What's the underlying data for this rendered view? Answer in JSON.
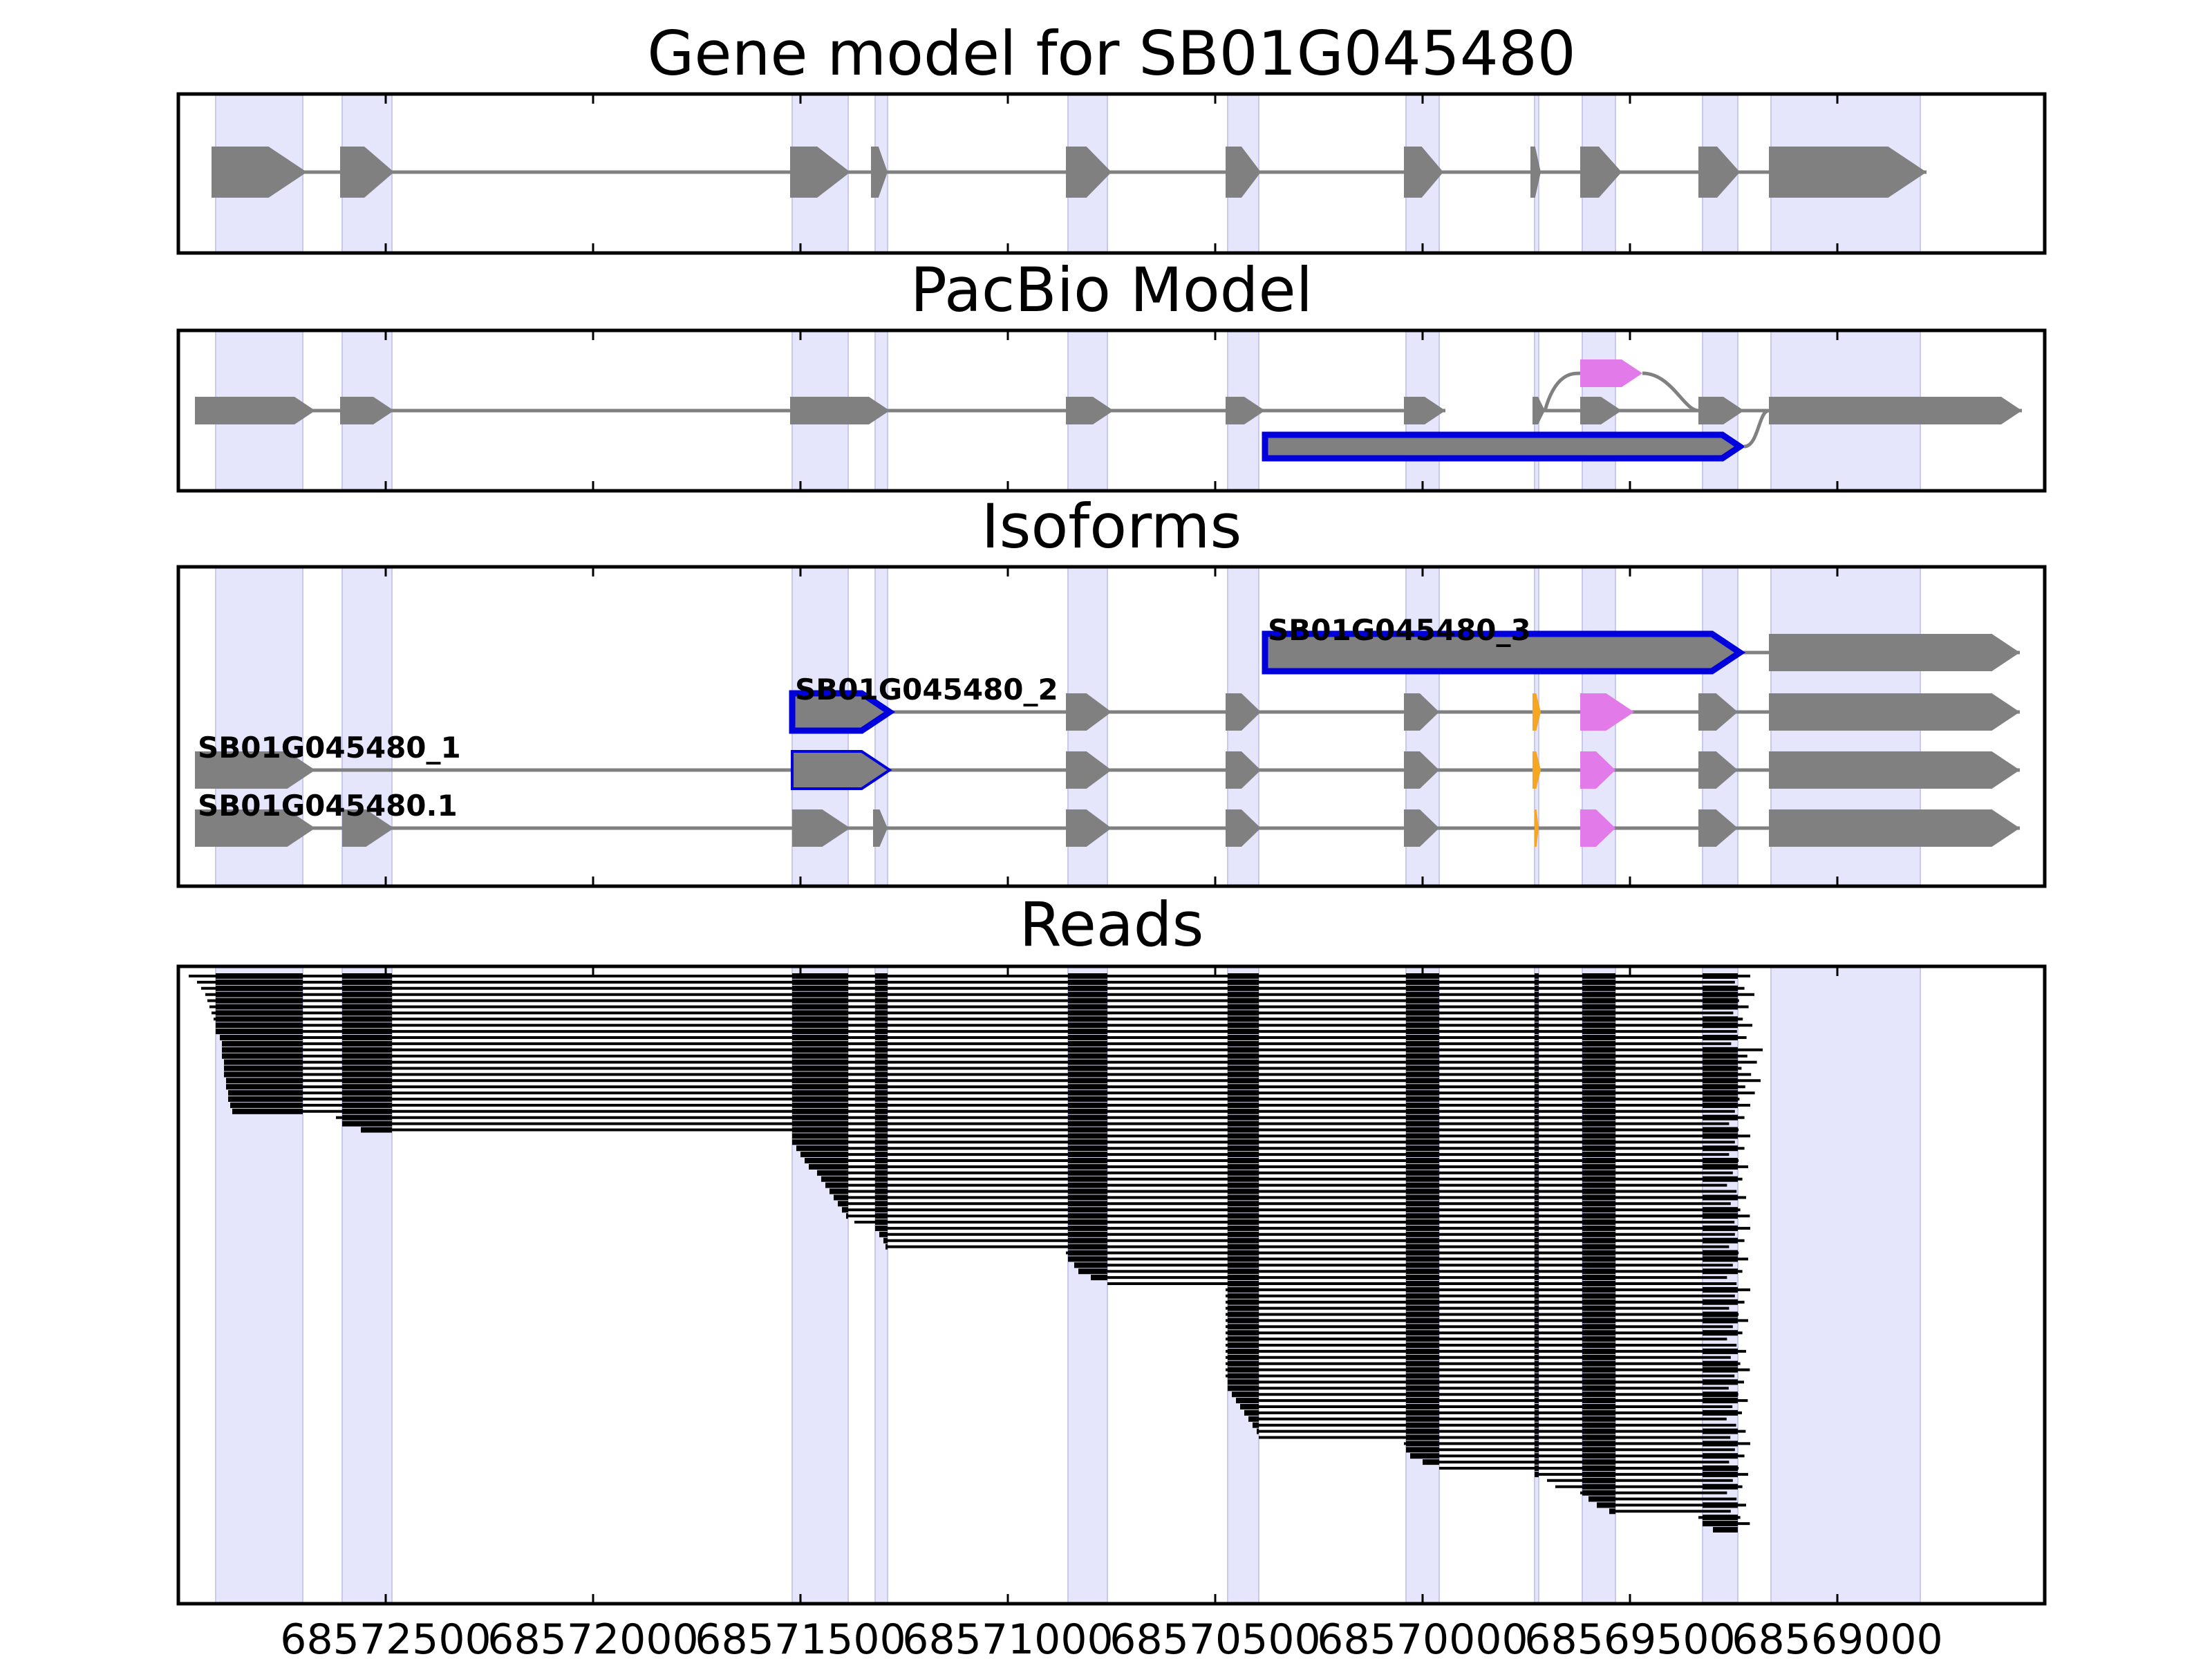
{
  "chart_data": {
    "type": "gene-structure",
    "xlim": [
      68573000,
      68568500
    ],
    "xticks": [
      "68572500",
      "68572000",
      "68571500",
      "68571000",
      "68570500",
      "68570000",
      "68569500",
      "68569000"
    ],
    "xtick_values": [
      68572500,
      68572000,
      68571500,
      68571000,
      68570500,
      68570000,
      68569500,
      68569000
    ],
    "colors": {
      "exon": "#808080",
      "highlight": "#e5e5fb",
      "alt": "#e27be9",
      "alt2": "#f5a623",
      "outline": "#0000dd",
      "read": "#000000",
      "intron": "#808080"
    },
    "shaded_regions": [
      [
        68572910,
        68572700
      ],
      [
        68572605,
        68572485
      ],
      [
        68571520,
        68571385
      ],
      [
        68571320,
        68571290
      ],
      [
        68570855,
        68570760
      ],
      [
        68570470,
        68570395
      ],
      [
        68570040,
        68569960
      ],
      [
        68569730,
        68569720
      ],
      [
        68569615,
        68569535
      ],
      [
        68569325,
        68569240
      ],
      [
        68569160,
        68568800
      ]
    ],
    "panels": [
      {
        "title": "Gene model for SB01G045480",
        "rows": [
          {
            "exons": [
              [
                68572920,
                68572690
              ],
              [
                68572610,
                68572480
              ],
              [
                68571525,
                68571380
              ],
              [
                68571330,
                68571290
              ],
              [
                68570860,
                68570750
              ],
              [
                68570475,
                68570390
              ],
              [
                68570045,
                68569950
              ],
              [
                68569740,
                68569715
              ],
              [
                68569620,
                68569520
              ],
              [
                68569335,
                68569235
              ],
              [
                68569165,
                68568785
              ]
            ]
          }
        ]
      },
      {
        "title": "PacBio Model",
        "rows": [
          {
            "exons": [
              [
                68572960,
                68572670
              ],
              [
                68572610,
                68572480
              ],
              [
                68571525,
                68571285
              ],
              [
                68570860,
                68570745
              ],
              [
                68570475,
                68570380
              ],
              [
                68570045,
                68569945
              ]
            ]
          },
          {
            "exons": [
              [
                68569735,
                68569705
              ],
              [
                68569620,
                68569520
              ],
              [
                68569335,
                68569225
              ],
              [
                68569165,
                68568555
              ]
            ]
          },
          {
            "exons": [
              [
                68569620,
                68569470
              ]
            ],
            "color": "alt"
          },
          {
            "exons": [
              [
                68570380,
                68569235
              ]
            ],
            "outlined": true
          }
        ]
      },
      {
        "title": "Isoforms",
        "rows": [
          {
            "label": "SB01G045480_3",
            "exons": [
              [
                68570380,
                68569235
              ],
              [
                68569165,
                68568560
              ]
            ],
            "outlined_first": true
          },
          {
            "label": "SB01G045480_2",
            "exons": [
              [
                68571520,
                68571285
              ],
              [
                68570860,
                68570750
              ],
              [
                68570475,
                68570390
              ],
              [
                68570045,
                68569960
              ],
              [
                68569735,
                68569715
              ],
              [
                68569620,
                68569490
              ],
              [
                68569335,
                68569240
              ],
              [
                68569165,
                68568560
              ]
            ],
            "outlined_first": true
          },
          {
            "label": "SB01G045480_1",
            "exons": [
              [
                68572960,
                68572670
              ],
              [
                68571520,
                68571285
              ],
              [
                68570860,
                68570750
              ],
              [
                68570475,
                68570390
              ],
              [
                68570045,
                68569960
              ],
              [
                68569735,
                68569715
              ],
              [
                68569620,
                68569535
              ],
              [
                68569335,
                68569240
              ],
              [
                68569165,
                68568560
              ]
            ],
            "outlined_second": true
          },
          {
            "label": "SB01G045480.1",
            "exons": [
              [
                68572960,
                68572670
              ],
              [
                68572605,
                68572480
              ],
              [
                68571520,
                68571380
              ],
              [
                68571325,
                68571290
              ],
              [
                68570860,
                68570750
              ],
              [
                68570475,
                68570390
              ],
              [
                68570045,
                68569960
              ],
              [
                68569730,
                68569720
              ],
              [
                68569620,
                68569535
              ],
              [
                68569335,
                68569240
              ],
              [
                68569165,
                68568560
              ]
            ]
          }
        ]
      },
      {
        "title": "Reads"
      }
    ],
    "reads": [
      {
        "n": 3,
        "starts": [
          68572975,
          68572955,
          68572945
        ],
        "end": 68569240
      },
      {
        "n": 9,
        "starts": [
          68572935,
          68572930,
          68572925,
          68572920,
          68572915,
          68572910,
          68572905,
          68572900,
          68572895
        ],
        "end": 68569230
      },
      {
        "n": 9,
        "starts": [
          68572895,
          68572895,
          68572890,
          68572890,
          68572890,
          68572885,
          68572885,
          68572880,
          68572880
        ],
        "end": 68569210
      },
      {
        "n": 5,
        "starts": [
          68572875,
          68572870,
          68572620,
          68572600,
          68572560
        ],
        "end": 68569240
      },
      {
        "n": 15,
        "starts": [
          68571520,
          68571515,
          68571510,
          68571500,
          68571490,
          68571480,
          68571460,
          68571450,
          68571440,
          68571430,
          68571420,
          68571410,
          68571400,
          68571390,
          68571370
        ],
        "end": 68569240
      },
      {
        "n": 10,
        "starts": [
          68571320,
          68571310,
          68571300,
          68571295,
          68570860,
          68570850,
          68570840,
          68570830,
          68570800,
          68570760
        ],
        "end": 68569240
      },
      {
        "n": 25,
        "starts": [
          68570475,
          68570475,
          68570475,
          68570475,
          68570475,
          68570475,
          68570475,
          68570475,
          68570475,
          68570475,
          68570475,
          68570475,
          68570475,
          68570475,
          68570475,
          68570470,
          68570465,
          68570460,
          68570450,
          68570440,
          68570430,
          68570420,
          68570410,
          68570400,
          68570395
        ],
        "end": 68569240
      },
      {
        "n": 15,
        "starts": [
          68570045,
          68570040,
          68570030,
          68570000,
          68569960,
          68569730,
          68569700,
          68569680,
          68569620,
          68569600,
          68569580,
          68569550,
          68569335,
          68569320,
          68569300
        ],
        "end": 68569240
      }
    ]
  }
}
